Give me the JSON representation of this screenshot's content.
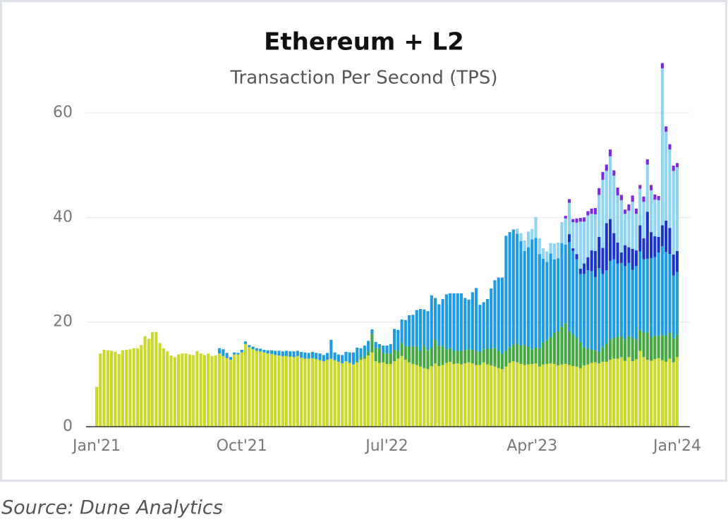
{
  "chart_data": {
    "type": "stacked_bar",
    "title": "Ethereum + L2",
    "subtitle": "Transaction Per Second (TPS)",
    "source": "Source: Dune Analytics",
    "categories": [
      "Jan'21",
      null,
      null,
      null,
      null,
      null,
      null,
      null,
      null,
      null,
      null,
      null,
      null,
      null,
      null,
      null,
      null,
      null,
      null,
      null,
      null,
      null,
      null,
      null,
      null,
      null,
      null,
      null,
      null,
      null,
      null,
      null,
      null,
      null,
      null,
      null,
      null,
      null,
      null,
      "Oct'21",
      null,
      null,
      null,
      null,
      null,
      null,
      null,
      null,
      null,
      null,
      null,
      null,
      null,
      null,
      null,
      null,
      null,
      null,
      null,
      null,
      null,
      null,
      null,
      null,
      null,
      null,
      null,
      null,
      null,
      null,
      null,
      null,
      null,
      null,
      null,
      null,
      null,
      null,
      "Jul'22",
      null,
      null,
      null,
      null,
      null,
      null,
      null,
      null,
      null,
      null,
      null,
      null,
      null,
      null,
      null,
      null,
      null,
      null,
      null,
      null,
      null,
      null,
      null,
      null,
      null,
      null,
      null,
      null,
      null,
      null,
      null,
      null,
      null,
      null,
      null,
      null,
      null,
      null,
      "Apr'23",
      null,
      null,
      null,
      null,
      null,
      null,
      null,
      null,
      null,
      null,
      null,
      null,
      null,
      null,
      null,
      null,
      null,
      null,
      null,
      null,
      null,
      null,
      null,
      null,
      null,
      null,
      null,
      null,
      null,
      null,
      null,
      null,
      null,
      null,
      null,
      null,
      null,
      null,
      "Jan'24"
    ],
    "series": [
      {
        "color": "#cbd92f",
        "values": [
          7.6,
          14,
          14.7,
          14.6,
          14.5,
          14.3,
          13.9,
          14.6,
          14.7,
          14.8,
          15,
          15,
          15.6,
          17.3,
          16.8,
          18.1,
          18.1,
          16,
          15,
          14.4,
          13.6,
          13.3,
          13.8,
          14,
          14,
          13.8,
          13.7,
          14.4,
          14,
          13.7,
          14,
          13.5,
          13.6,
          14,
          13.5,
          13.1,
          12.8,
          13.8,
          13.8,
          14.2,
          15.8,
          15.2,
          14.8,
          14.5,
          14.4,
          14.2,
          14,
          13.9,
          13.7,
          13.6,
          13.5,
          13.5,
          13.4,
          13.3,
          13.5,
          13.2,
          13,
          13,
          13.1,
          12.9,
          12.7,
          12.5,
          12.8,
          13,
          12.7,
          12.4,
          12.1,
          12.5,
          12.2,
          11.9,
          12.3,
          12.8,
          13,
          13.6,
          14.2,
          12.5,
          12.2,
          12.3,
          12,
          12,
          12.5,
          13,
          13.5,
          12.8,
          12.3,
          12,
          11.8,
          11.5,
          11.2,
          11,
          11.6,
          12.1,
          11.6,
          11.8,
          12.2,
          12.4,
          12,
          12.1,
          11.9,
          12.1,
          12.3,
          12.1,
          11.8,
          11.8,
          12.3,
          11.9,
          11.7,
          11.5,
          11.2,
          11,
          11.5,
          12.2,
          12.5,
          12.3,
          12,
          11.8,
          11.9,
          12,
          12.1,
          11.5,
          11.9,
          12,
          12.1,
          12,
          11.7,
          11.9,
          12,
          11.8,
          11.6,
          11.5,
          11.2,
          11.7,
          11.9,
          12.2,
          12.3,
          12.1,
          12.4,
          12.4,
          12.8,
          13,
          13,
          13.3,
          12.6,
          13.3,
          12.5,
          12.9,
          14.5,
          13.3,
          12.8,
          12.6,
          12.9,
          13.1,
          12.7,
          12.4,
          13,
          12.3,
          13.3
        ]
      },
      {
        "color": "#45a843",
        "values": [
          0,
          0,
          0,
          0,
          0,
          0,
          0,
          0,
          0,
          0,
          0,
          0,
          0,
          0,
          0,
          0,
          0,
          0,
          0,
          0,
          0,
          0,
          0,
          0,
          0,
          0,
          0,
          0,
          0,
          0,
          0,
          0,
          0,
          0,
          0,
          0,
          0,
          0,
          0,
          0,
          0,
          0,
          0,
          0,
          0,
          0,
          0,
          0,
          0,
          0,
          0,
          0,
          0,
          0,
          0,
          0,
          0,
          0,
          0,
          0,
          0,
          0,
          0,
          0,
          0,
          0,
          0,
          0,
          0,
          0,
          0.3,
          0.4,
          0.5,
          0.8,
          3.5,
          2.5,
          2.8,
          1.8,
          2,
          2,
          2.2,
          1.5,
          2.5,
          2.6,
          3,
          3.4,
          3.5,
          3,
          4.2,
          3.6,
          3.5,
          4.5,
          3.8,
          3.6,
          2.6,
          2.6,
          2.5,
          2.4,
          2.6,
          2.5,
          2.5,
          2.6,
          2.7,
          2.5,
          2.5,
          3,
          3.2,
          3.5,
          3.3,
          3,
          3,
          3,
          3.2,
          3.6,
          3.5,
          3.8,
          3.4,
          2.8,
          3,
          3.5,
          4.2,
          4.5,
          5,
          6,
          6.5,
          7.2,
          7.8,
          6.5,
          6,
          5.5,
          5,
          3.5,
          3,
          2.5,
          2.3,
          2.2,
          2.8,
          3.5,
          3.9,
          4,
          4.2,
          4,
          4.1,
          4,
          4.5,
          3.8,
          4,
          4.7,
          5.3,
          4.6,
          4.5,
          4.2,
          4.8,
          5,
          5,
          4.6,
          4.3
        ]
      },
      {
        "color": "#1f9be0",
        "values": [
          0,
          0,
          0,
          0,
          0,
          0,
          0,
          0,
          0,
          0,
          0,
          0,
          0,
          0,
          0,
          0,
          0,
          0,
          0,
          0,
          0,
          0,
          0,
          0,
          0,
          0,
          0,
          0,
          0,
          0,
          0,
          0,
          0,
          1,
          1.3,
          1,
          0.5,
          0.4,
          0.3,
          0.5,
          0.5,
          0.4,
          0.5,
          0.5,
          0.5,
          0.5,
          0.6,
          0.7,
          0.8,
          0.9,
          0.9,
          1,
          1,
          1.1,
          1,
          1.1,
          1.2,
          1.1,
          1.2,
          1.2,
          1.3,
          1.2,
          1.3,
          3.6,
          1.5,
          1.4,
          1.6,
          1.8,
          2,
          2.3,
          2.5,
          1.8,
          2,
          2,
          0.9,
          1.2,
          0.8,
          1.4,
          1.5,
          1.8,
          4,
          4,
          4.5,
          5,
          6,
          6,
          7,
          8,
          7,
          7.5,
          10,
          8,
          8,
          9,
          10.5,
          10.5,
          11,
          11,
          11,
          10,
          9.5,
          11,
          12,
          9,
          9,
          9.5,
          11.5,
          13,
          14,
          14.5,
          22,
          22,
          22,
          21,
          20,
          18,
          19,
          21,
          21,
          18,
          16,
          15,
          16,
          14,
          14,
          16,
          15,
          17,
          16,
          15,
          13,
          14,
          15,
          15,
          14,
          16,
          14,
          14,
          15,
          15,
          14,
          14,
          14,
          14,
          13,
          14,
          15,
          14,
          14,
          15,
          15,
          16,
          17,
          16,
          15,
          12,
          12
        ]
      },
      {
        "color": "#1b36c6",
        "values": [
          0,
          0,
          0,
          0,
          0,
          0,
          0,
          0,
          0,
          0,
          0,
          0,
          0,
          0,
          0,
          0,
          0,
          0,
          0,
          0,
          0,
          0,
          0,
          0,
          0,
          0,
          0,
          0,
          0,
          0,
          0,
          0,
          0,
          0,
          0,
          0,
          0,
          0,
          0,
          0,
          0,
          0,
          0,
          0,
          0,
          0,
          0,
          0,
          0,
          0,
          0,
          0,
          0,
          0,
          0,
          0,
          0,
          0,
          0,
          0,
          0,
          0,
          0,
          0,
          0,
          0,
          0,
          0,
          0,
          0,
          0,
          0,
          0,
          0,
          0,
          0,
          0,
          0,
          0,
          0,
          0,
          0,
          0,
          0,
          0,
          0,
          0,
          0,
          0,
          0,
          0,
          0,
          0,
          0,
          0,
          0,
          0,
          0,
          0,
          0,
          0,
          0,
          0,
          0,
          0,
          0,
          0,
          0,
          0,
          0,
          0,
          0,
          0,
          0,
          0,
          0,
          0,
          0,
          0,
          0,
          0,
          0,
          0,
          0,
          0,
          0,
          0,
          1.5,
          0.5,
          1,
          1,
          2,
          2.5,
          4,
          5,
          6,
          5,
          9,
          8,
          5,
          4,
          2,
          4,
          3,
          4,
          3,
          5,
          4,
          9,
          5,
          4,
          3,
          4,
          6,
          5,
          4,
          4
        ]
      },
      {
        "color": "#90d4f4",
        "values": [
          0,
          0,
          0,
          0,
          0,
          0,
          0,
          0,
          0,
          0,
          0,
          0,
          0,
          0,
          0,
          0,
          0,
          0,
          0,
          0,
          0,
          0,
          0,
          0,
          0,
          0,
          0,
          0,
          0,
          0,
          0,
          0,
          0,
          0,
          0,
          0,
          0,
          0,
          0,
          0,
          0,
          0,
          0,
          0,
          0,
          0,
          0,
          0,
          0,
          0,
          0,
          0,
          0,
          0,
          0,
          0,
          0,
          0,
          0,
          0,
          0,
          0,
          0,
          0,
          0,
          0,
          0,
          0,
          0,
          0,
          0,
          0,
          0,
          0,
          0,
          0,
          0,
          0,
          0,
          0,
          0,
          0,
          0,
          0,
          0,
          0,
          0,
          0,
          0,
          0,
          0,
          0,
          0,
          0,
          0,
          0,
          0,
          0,
          0,
          0,
          0,
          0,
          0,
          0,
          0,
          0,
          0,
          0,
          0,
          0,
          0,
          0,
          0,
          1,
          1.5,
          2,
          3,
          2,
          4,
          3,
          2,
          2,
          2,
          3,
          3,
          4,
          5,
          6,
          5,
          6,
          9,
          8,
          8,
          7,
          7,
          8,
          13,
          10,
          12,
          11,
          9,
          10,
          6,
          7,
          9,
          7,
          7,
          7,
          9,
          8,
          7,
          7,
          30,
          17,
          15,
          16,
          16
        ]
      },
      {
        "color": "#7a2bdf",
        "values": [
          0,
          0,
          0,
          0,
          0,
          0,
          0,
          0,
          0,
          0,
          0,
          0,
          0,
          0,
          0,
          0,
          0,
          0,
          0,
          0,
          0,
          0,
          0,
          0,
          0,
          0,
          0,
          0,
          0,
          0,
          0,
          0,
          0,
          0,
          0,
          0,
          0,
          0,
          0,
          0,
          0,
          0,
          0,
          0,
          0,
          0,
          0,
          0,
          0,
          0,
          0,
          0,
          0,
          0,
          0,
          0,
          0,
          0,
          0,
          0,
          0,
          0,
          0,
          0,
          0,
          0,
          0,
          0,
          0,
          0,
          0,
          0,
          0,
          0,
          0,
          0,
          0,
          0,
          0,
          0,
          0,
          0,
          0,
          0,
          0,
          0,
          0,
          0,
          0,
          0,
          0,
          0,
          0,
          0,
          0,
          0,
          0,
          0,
          0,
          0,
          0,
          0,
          0,
          0,
          0,
          0,
          0,
          0,
          0,
          0,
          0,
          0,
          0,
          0,
          0,
          0,
          0,
          0,
          0,
          0,
          0,
          0,
          0,
          0,
          0,
          0,
          0.5,
          0.7,
          0.6,
          0.8,
          0.7,
          0.8,
          0.8,
          1,
          1.2,
          1.3,
          1.5,
          1.2,
          1.3,
          1,
          1.5,
          1,
          0.8,
          1.2,
          1.2,
          1,
          0.7,
          1,
          1,
          1,
          1,
          0.8,
          1,
          1,
          1,
          1,
          0.8
        ]
      }
    ],
    "ylim": [
      0,
      66
    ],
    "yticks": [
      0,
      20,
      40,
      60
    ],
    "grid": true
  }
}
